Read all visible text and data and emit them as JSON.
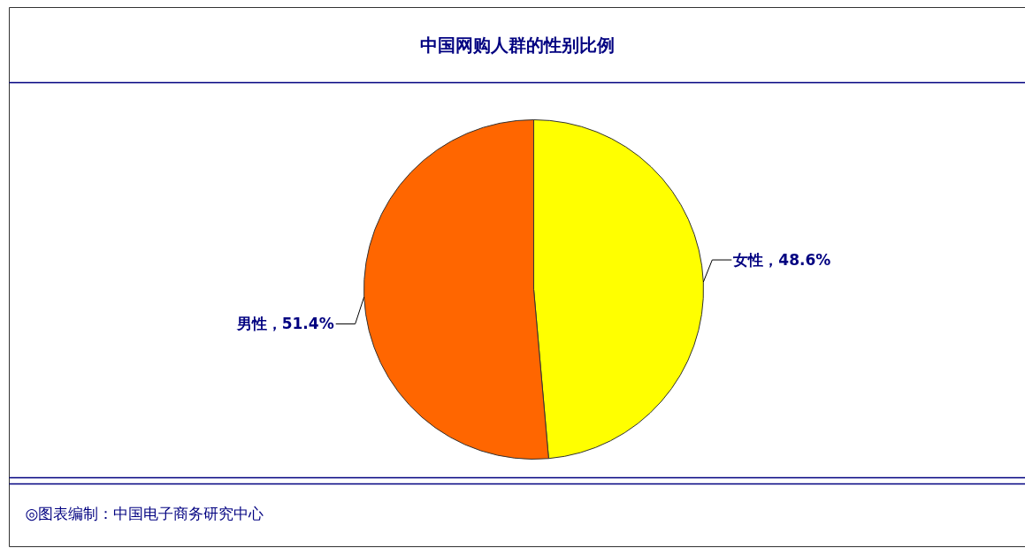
{
  "chart_data": {
    "type": "pie",
    "title": "中国网购人群的性别比例",
    "categories": [
      "女性",
      "男性"
    ],
    "values": [
      48.6,
      51.4
    ],
    "colors": [
      "#ffff00",
      "#ff6600"
    ],
    "value_labels": [
      "48.6%",
      "51.4%"
    ],
    "annotations": [
      "◎图表编制：中国电子商务研究中心"
    ]
  }
}
